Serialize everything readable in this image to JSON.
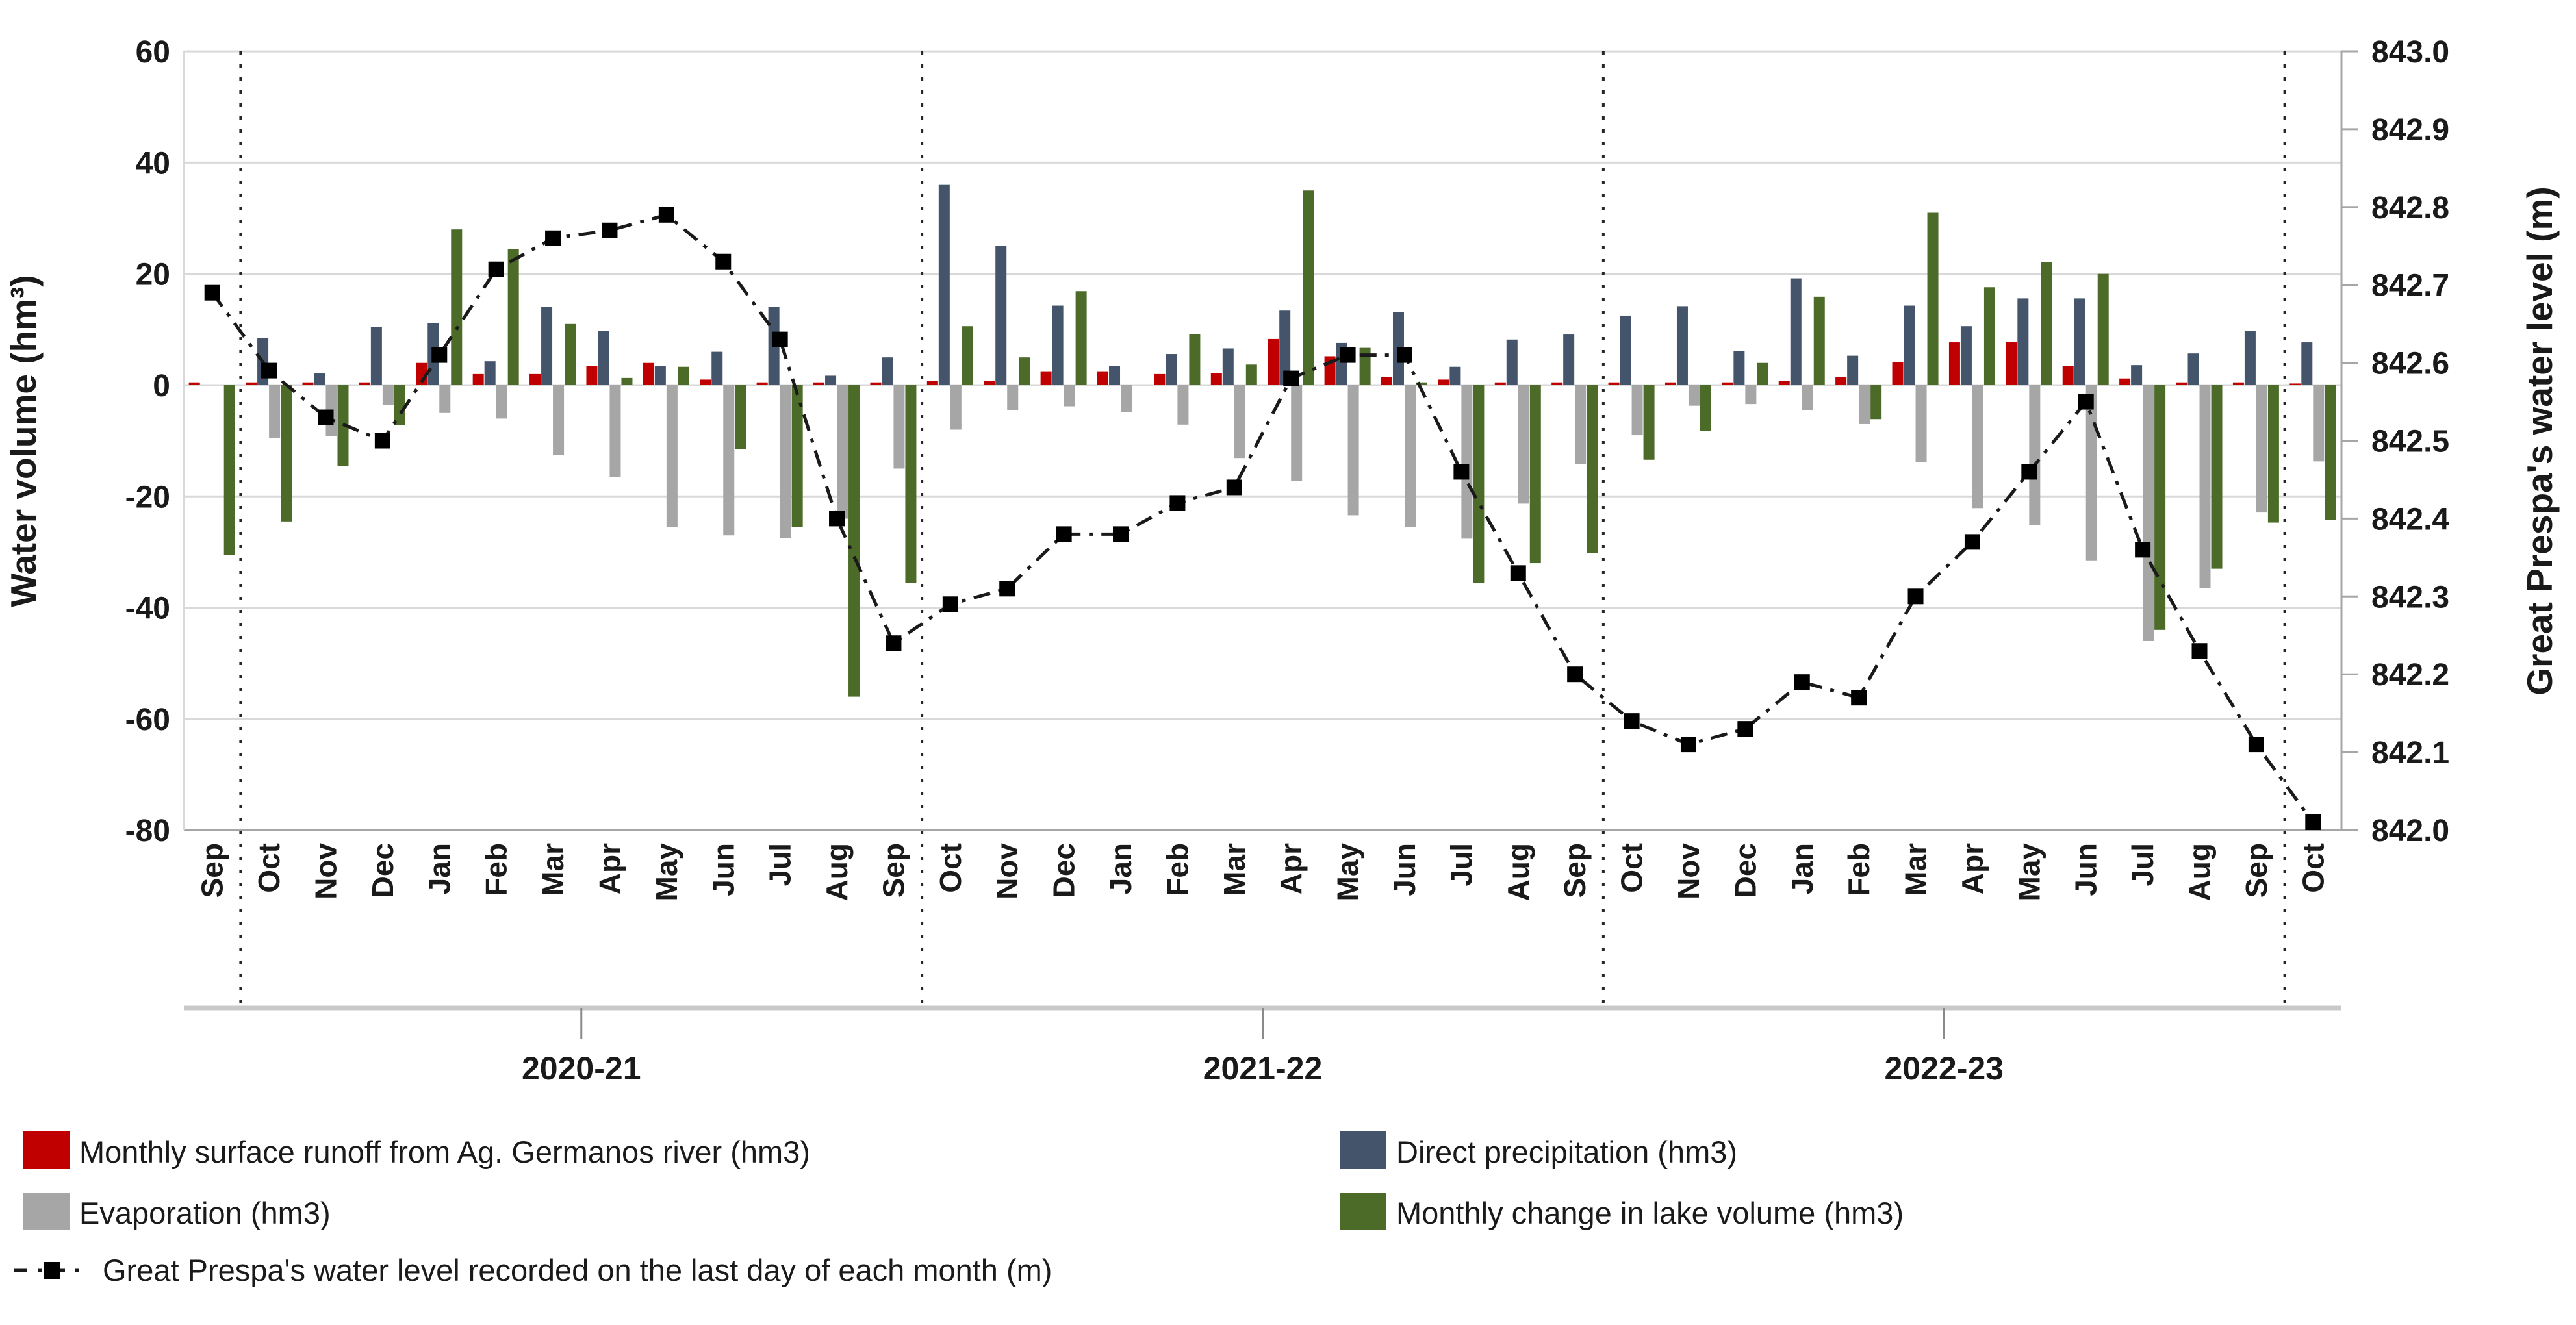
{
  "chart_data": {
    "type": "bar",
    "title": "",
    "categories": [
      "Sep",
      "Oct",
      "Nov",
      "Dec",
      "Jan",
      "Feb",
      "Mar",
      "Apr",
      "May",
      "Jun",
      "Jul",
      "Aug",
      "Sep",
      "Oct",
      "Nov",
      "Dec",
      "Jan",
      "Feb",
      "Mar",
      "Apr",
      "May",
      "Jun",
      "Jul",
      "Aug",
      "Sep",
      "Oct",
      "Nov",
      "Dec",
      "Jan",
      "Feb",
      "Mar",
      "Apr",
      "May",
      "Jun",
      "Jul",
      "Aug",
      "Sep",
      "Oct"
    ],
    "series": [
      {
        "name": "Monthly surface runoff from Ag. Germanos river (hm3)",
        "type": "bar",
        "color": "#c00000",
        "values": [
          0.5,
          0.5,
          0.5,
          0.5,
          4,
          2,
          2,
          3.5,
          4,
          1,
          0.5,
          0.5,
          0.5,
          0.7,
          0.7,
          2.5,
          2.5,
          2,
          2.2,
          8.3,
          5.2,
          1.5,
          1,
          0.5,
          0.5,
          0.5,
          0.5,
          0.5,
          0.7,
          1.5,
          4.2,
          7.7,
          7.8,
          3.4,
          1.2,
          0.5,
          0.5,
          0.3
        ]
      },
      {
        "name": "Direct precipitation (hm3)",
        "type": "bar",
        "color": "#44546a",
        "values": [
          0,
          8.5,
          2.1,
          10.5,
          11.2,
          4.3,
          14.1,
          9.7,
          3.4,
          6,
          14.1,
          1.7,
          5,
          36,
          25,
          14.3,
          3.5,
          5.6,
          6.6,
          13.4,
          7.6,
          13.1,
          3.3,
          8.2,
          9.1,
          12.5,
          14.2,
          6.1,
          19.2,
          5.3,
          14.3,
          10.6,
          15.6,
          15.6,
          3.6,
          5.7,
          9.8,
          7.7
        ]
      },
      {
        "name": "Evaporation (hm3)",
        "type": "bar",
        "color": "#a6a6a6",
        "values": [
          0,
          -9.5,
          -9.2,
          -3.5,
          -5,
          -6,
          -12.5,
          -16.5,
          -25.5,
          -27,
          -27.5,
          -24,
          -15,
          -8,
          -4.5,
          -3.8,
          -4.8,
          -7.1,
          -13.1,
          -17.2,
          -23.4,
          -25.5,
          -27.6,
          -21.3,
          -14.2,
          -9,
          -3.7,
          -3.4,
          -4.5,
          -7,
          -13.8,
          -22.1,
          -25.2,
          -31.5,
          -46,
          -36.5,
          -22.9,
          -13.7
        ]
      },
      {
        "name": "Monthly change in lake volume (hm3)",
        "type": "bar",
        "color": "#4c6a28",
        "values": [
          -30.5,
          -24.5,
          -14.5,
          -7.2,
          28,
          24.5,
          11,
          1.3,
          3.3,
          -11.5,
          -25.5,
          -56,
          -35.5,
          10.6,
          5,
          16.9,
          0,
          9.2,
          3.7,
          35,
          6.7,
          0.5,
          -35.5,
          -32,
          -30.2,
          -13.4,
          -8.2,
          4,
          15.9,
          -6.1,
          31,
          17.6,
          22.1,
          20,
          -44,
          -33,
          -24.7,
          -24.2
        ]
      },
      {
        "name": "Great Prespa's water level recorded on the last day of each month (m)",
        "type": "line",
        "axis": "right",
        "color": "#1a1a1a",
        "values": [
          842.69,
          842.59,
          842.53,
          842.5,
          842.61,
          842.72,
          842.76,
          842.77,
          842.79,
          842.73,
          842.63,
          842.4,
          842.24,
          842.29,
          842.31,
          842.38,
          842.38,
          842.42,
          842.44,
          842.58,
          842.61,
          842.61,
          842.46,
          842.33,
          842.2,
          842.14,
          842.11,
          842.13,
          842.19,
          842.17,
          842.3,
          842.37,
          842.46,
          842.55,
          842.36,
          842.23,
          842.11,
          842.01
        ]
      }
    ],
    "y_left": {
      "label": "Water volume (hm³)",
      "min": -80,
      "max": 60,
      "ticks": [
        60,
        40,
        20,
        0,
        -20,
        -40,
        -60,
        -80
      ]
    },
    "y_right": {
      "label": "Great Prespa's water level (m)",
      "min": 842.0,
      "max": 843.0,
      "ticks": [
        "843.0",
        "842.9",
        "842.8",
        "842.7",
        "842.6",
        "842.5",
        "842.4",
        "842.3",
        "842.2",
        "842.1",
        "842.0"
      ]
    },
    "separators_after": [
      0,
      12,
      24,
      36
    ],
    "year_groups": [
      {
        "label": "2020-21",
        "from": 1,
        "to": 12
      },
      {
        "label": "2021-22",
        "from": 13,
        "to": 24
      },
      {
        "label": "2022-23",
        "from": 25,
        "to": 36
      }
    ],
    "legend_position": "bottom",
    "grid": true
  },
  "colors": {
    "grid": "#d9d9d9",
    "axis": "#a6a6a6",
    "separator": "#262626",
    "bracket": "#c8c8c8",
    "text": "#1a1a1a"
  }
}
